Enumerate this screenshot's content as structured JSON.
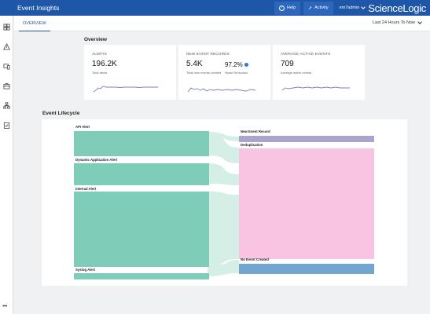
{
  "app": {
    "title": "Event Insights",
    "brand": "ScienceLogic"
  },
  "topbar": {
    "help_label": "Help",
    "activity_label": "Activity",
    "user": "em7admin"
  },
  "nav": {
    "more": "•••"
  },
  "tabs": [
    {
      "label": "OVERVIEW",
      "active": true
    }
  ],
  "time_range": "Last 24 Hours To Now",
  "overview": {
    "title": "Overview",
    "cards": [
      {
        "label": "ALERTS",
        "value": "196.2K",
        "sub": "Total alerts"
      },
      {
        "label": "NEW EVENT RECORDS",
        "value": "5.4K",
        "sub": "Total new events created",
        "value2": "97.2%",
        "sub2": "Noise Reduction"
      },
      {
        "label": "AVERAGE ACTIVE EVENTS",
        "value": "709",
        "sub": "Average active events"
      }
    ]
  },
  "lifecycle": {
    "title": "Event Lifecycle",
    "sources": [
      "API Alert",
      "Dynamic Application Alert",
      "Internal Alert",
      "Syslog Alert"
    ],
    "targets": [
      "New Event Record",
      "Deduplication",
      "No Event Created"
    ]
  },
  "colors": {
    "brand_blue": "#1e56a8",
    "source_node": "#7fcdb9",
    "flow": "#d5efe7",
    "new_event_record": "#a9a5cf",
    "deduplication": "#f9c4e1",
    "no_event_created": "#73a5d1",
    "sparkline": "#7c7fc2"
  }
}
